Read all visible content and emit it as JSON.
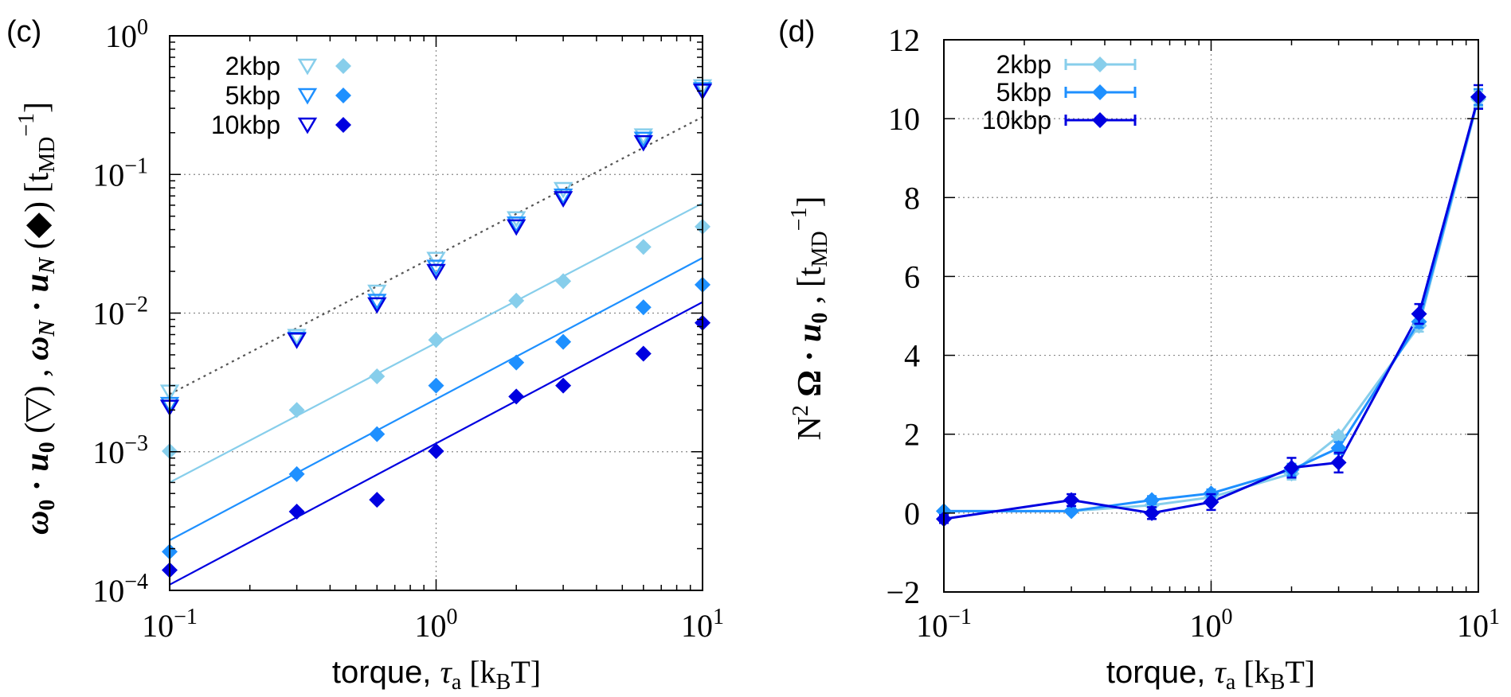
{
  "chart_data": [
    {
      "panel_label": "(c)",
      "type": "scatter",
      "x_scale": "log",
      "y_scale": "log",
      "xlim": [
        0.1,
        10
      ],
      "ylim": [
        0.0001,
        1
      ],
      "x_ticks": [
        0.1,
        1,
        10
      ],
      "y_ticks": [
        0.0001,
        0.001,
        0.01,
        0.1,
        1
      ],
      "x_tick_labels": [
        [
          "10",
          "−1"
        ],
        [
          "10",
          "0"
        ],
        [
          "10",
          "1"
        ]
      ],
      "y_tick_labels": [
        [
          "10",
          "−4"
        ],
        [
          "10",
          "−3"
        ],
        [
          "10",
          "−2"
        ],
        [
          "10",
          "−1"
        ],
        [
          "10",
          "0"
        ]
      ],
      "xlabel_text": "torque, ",
      "xlabel_symbol": "τ",
      "xlabel_sub": "a",
      "xlabel_unit": " [k",
      "xlabel_unit_sub": "B",
      "xlabel_unit_end": "T]",
      "ylabel": "ω₀ · u₀ (▽) , ω_N · u_N (◆) [t_MD⁻¹]",
      "grid": true,
      "legend_position": "top-left",
      "legend": [
        "2kbp",
        "5kbp",
        "10kbp"
      ],
      "x": [
        0.1,
        0.3,
        0.6,
        1,
        2,
        3,
        6,
        10
      ],
      "series": [
        {
          "name": "2kbp",
          "color": "#87CEEB",
          "triangles": [
            0.0027,
            0.0068,
            0.0142,
            0.0245,
            0.048,
            0.078,
            0.19,
            0.43
          ],
          "diamonds": [
            0.00101,
            0.002,
            0.0035,
            0.0064,
            0.0123,
            0.017,
            0.03,
            0.042
          ],
          "fit_line": [
            0.0006,
            0.062
          ]
        },
        {
          "name": "5kbp",
          "color": "#1E90FF",
          "triangles": [
            0.0022,
            0.0065,
            0.0122,
            0.0215,
            0.044,
            0.07,
            0.18,
            0.41
          ],
          "diamonds": [
            0.00019,
            0.00069,
            0.00134,
            0.003,
            0.0044,
            0.0062,
            0.011,
            0.016
          ],
          "fit_line": [
            0.00023,
            0.025
          ]
        },
        {
          "name": "10kbp",
          "color": "#0000E0",
          "triangles": [
            0.0021,
            0.0064,
            0.0115,
            0.02,
            0.042,
            0.067,
            0.17,
            0.4
          ],
          "diamonds": [
            0.00014,
            0.00037,
            0.00045,
            0.00101,
            0.0025,
            0.003,
            0.0051,
            0.0085
          ],
          "fit_line": [
            0.00011,
            0.012
          ]
        }
      ],
      "reference_line": {
        "style": "dotted",
        "color": "#555555",
        "values": [
          0.0026,
          0.26
        ]
      }
    },
    {
      "panel_label": "(d)",
      "type": "line",
      "x_scale": "log",
      "y_scale": "linear",
      "xlim": [
        0.1,
        10
      ],
      "ylim": [
        -2,
        12
      ],
      "x_ticks": [
        0.1,
        1,
        10
      ],
      "y_ticks": [
        -2,
        0,
        2,
        4,
        6,
        8,
        10,
        12
      ],
      "x_tick_labels": [
        [
          "10",
          "−1"
        ],
        [
          "10",
          "0"
        ],
        [
          "10",
          "1"
        ]
      ],
      "y_tick_labels": [
        "−2",
        "0",
        "2",
        "4",
        "6",
        "8",
        "10",
        "12"
      ],
      "xlabel_text": "torque, ",
      "xlabel_symbol": "τ",
      "xlabel_sub": "a",
      "xlabel_unit": " [k",
      "xlabel_unit_sub": "B",
      "xlabel_unit_end": "T]",
      "ylabel": "N² Ω · u₀ , [t_MD⁻¹]",
      "grid": true,
      "legend_position": "top-left",
      "legend": [
        "2kbp",
        "5kbp",
        "10kbp"
      ],
      "x": [
        0.1,
        0.3,
        0.6,
        1,
        2,
        3,
        6,
        10
      ],
      "series": [
        {
          "name": "2kbp",
          "color": "#87CEEB",
          "values": [
            0.05,
            0.05,
            0.2,
            0.4,
            1.0,
            1.95,
            4.75,
            10.5
          ],
          "errors": [
            0.05,
            0.05,
            0.1,
            0.1,
            0.15,
            0.1,
            0.15,
            0.2
          ]
        },
        {
          "name": "5kbp",
          "color": "#1E90FF",
          "values": [
            0.05,
            0.05,
            0.33,
            0.5,
            1.1,
            1.65,
            4.85,
            10.55
          ],
          "errors": [
            0.05,
            0.05,
            0.1,
            0.1,
            0.15,
            0.15,
            0.15,
            0.2
          ]
        },
        {
          "name": "10kbp",
          "color": "#0000E0",
          "values": [
            -0.15,
            0.33,
            0.0,
            0.28,
            1.15,
            1.28,
            5.05,
            10.55
          ],
          "errors": [
            0.1,
            0.15,
            0.15,
            0.2,
            0.25,
            0.25,
            0.25,
            0.3
          ]
        }
      ]
    }
  ]
}
